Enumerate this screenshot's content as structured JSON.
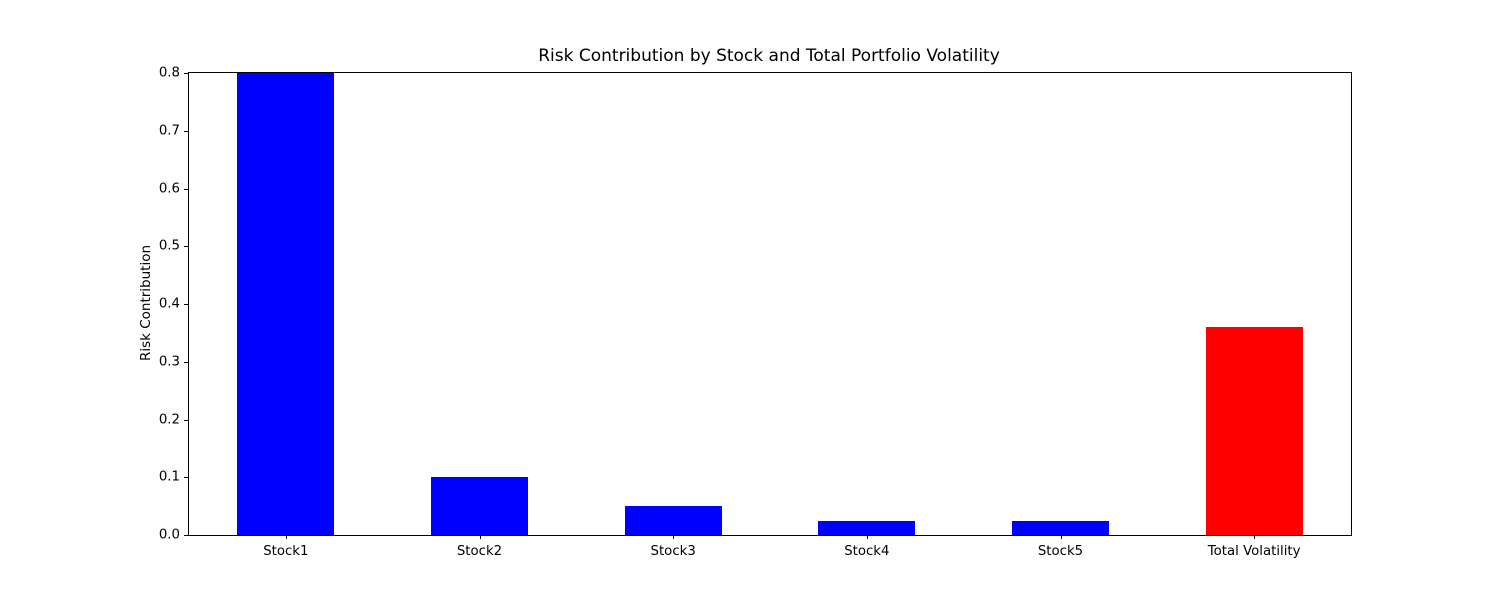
{
  "chart_data": {
    "type": "bar",
    "title": "Risk Contribution by Stock and Total Portfolio Volatility",
    "xlabel": "",
    "ylabel": "Risk Contribution",
    "categories": [
      "Stock1",
      "Stock2",
      "Stock3",
      "Stock4",
      "Stock5",
      "Total Volatility"
    ],
    "values": [
      0.8,
      0.1,
      0.05,
      0.025,
      0.025,
      0.36
    ],
    "colors": [
      "#0000ff",
      "#0000ff",
      "#0000ff",
      "#0000ff",
      "#0000ff",
      "#ff0000"
    ],
    "bar_color_default": "#0000ff",
    "bar_color_total": "#ff0000",
    "ylim": [
      0.0,
      0.8
    ],
    "yticks": [
      0.0,
      0.1,
      0.2,
      0.3,
      0.4,
      0.5,
      0.6,
      0.7,
      0.8
    ],
    "ytick_labels": [
      "0.0",
      "0.1",
      "0.2",
      "0.3",
      "0.4",
      "0.5",
      "0.6",
      "0.7",
      "0.8"
    ],
    "bar_width_fraction": 0.5,
    "grid": false,
    "legend": null,
    "axes_frame_color": "#000000",
    "background_color": "#ffffff"
  }
}
